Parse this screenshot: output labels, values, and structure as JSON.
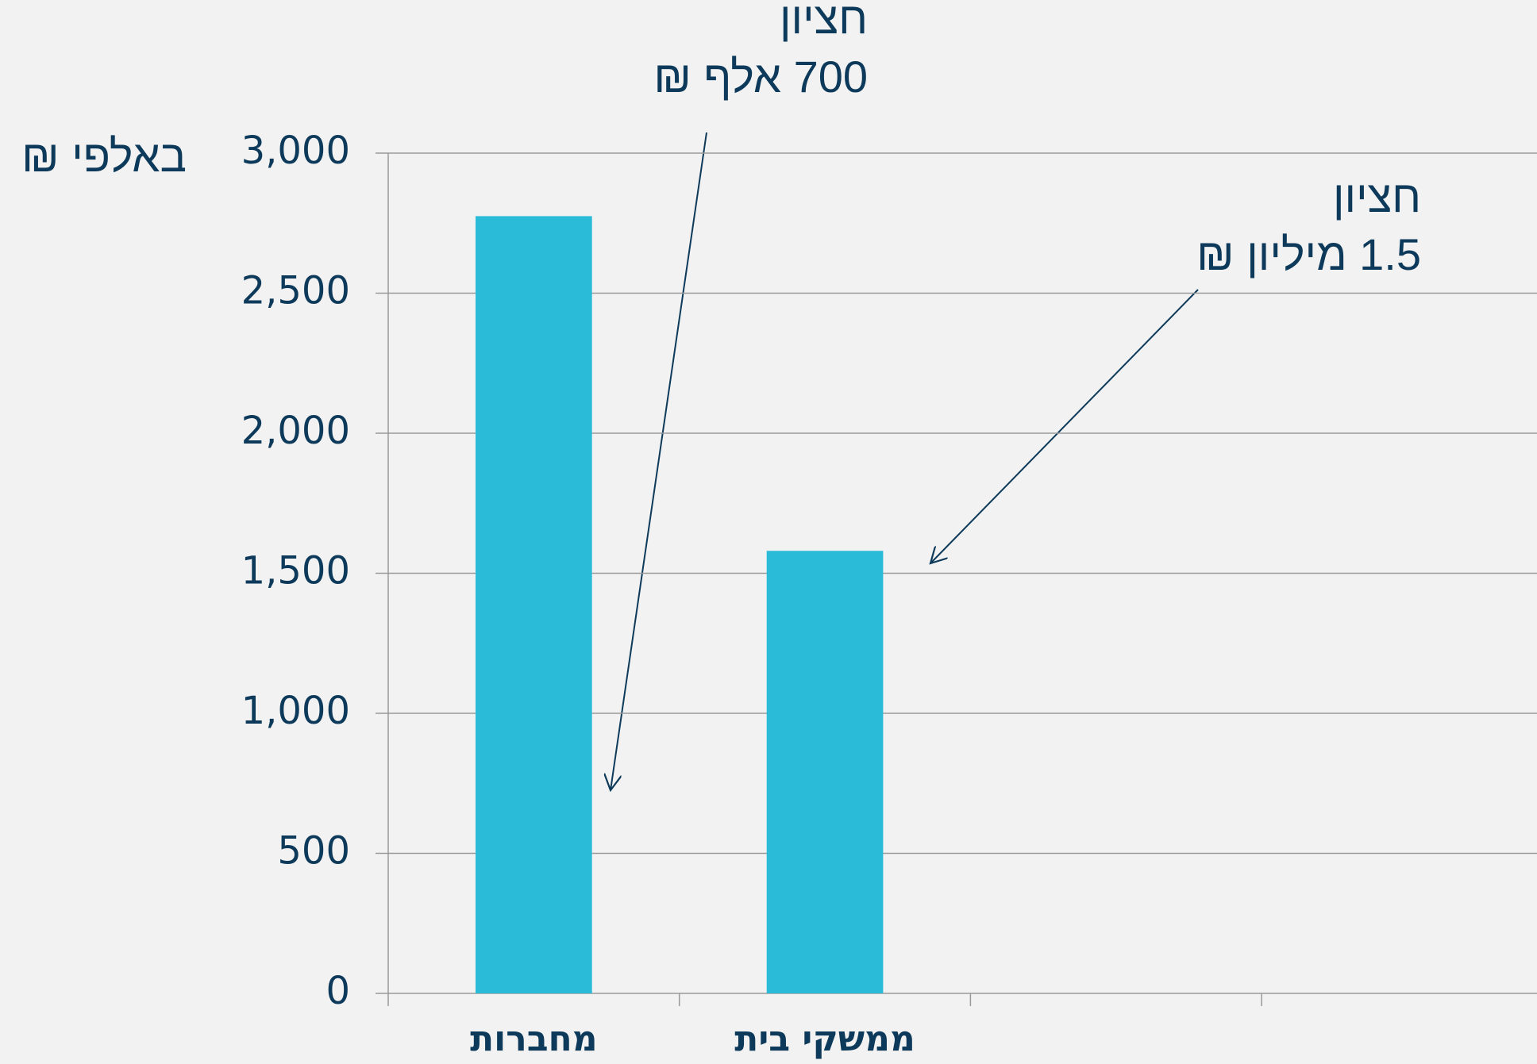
{
  "chart_data": {
    "type": "bar",
    "y_label": "באלפי ₪",
    "categories": [
      "מחברות",
      "ממשקי בית",
      null,
      null
    ],
    "values": [
      2775,
      1580,
      null,
      null
    ],
    "color": "#29bbd8",
    "ylim": [
      0,
      3000
    ],
    "yticks": [
      0,
      {
        "value": 500,
        "label": "500"
      },
      {
        "value": 1000,
        "label": "1,000"
      },
      {
        "value": 1500,
        "label": "1,500"
      },
      {
        "value": 2000,
        "label": "2,000"
      },
      {
        "value": 2500,
        "label": "2,500"
      },
      {
        "value": 3000,
        "label": "3,000"
      }
    ],
    "grid": true,
    "annotations": [
      {
        "lines": [
          "חציון",
          "700 אלף ₪"
        ]
      },
      {
        "lines": [
          "חציון",
          "1.5 מיליון ₪"
        ]
      }
    ]
  }
}
